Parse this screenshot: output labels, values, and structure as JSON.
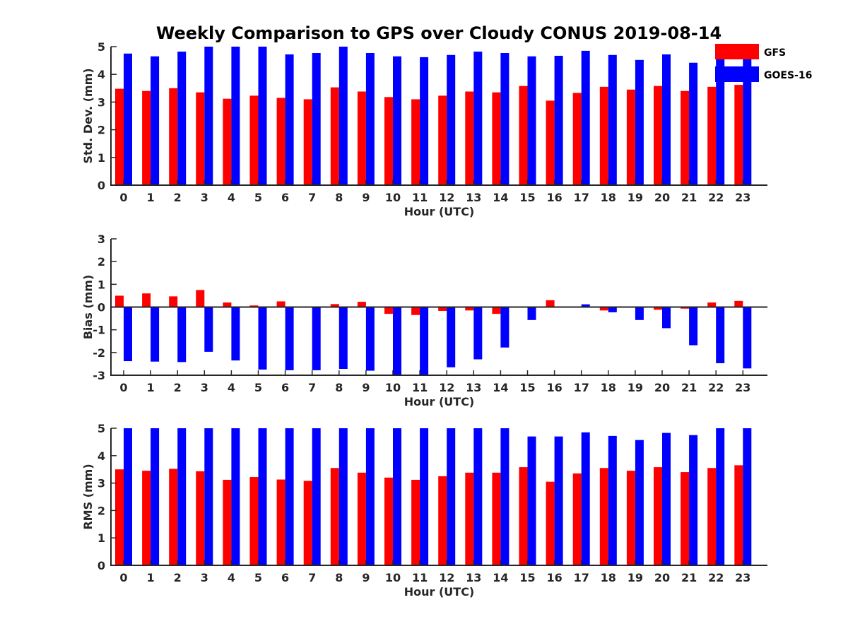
{
  "title": "Weekly Comparison to GPS over Cloudy CONUS 2019-08-14",
  "legend": {
    "items": [
      {
        "name": "GFS",
        "color": "#ff0000"
      },
      {
        "name": "GOES-16",
        "color": "#0000ff"
      }
    ]
  },
  "chart_data": [
    {
      "type": "bar",
      "xlabel": "Hour (UTC)",
      "ylabel": "Std. Dev. (mm)",
      "ylim": [
        0,
        5
      ],
      "yticks": [
        0,
        1,
        2,
        3,
        4,
        5
      ],
      "categories": [
        "0",
        "1",
        "2",
        "3",
        "4",
        "5",
        "6",
        "7",
        "8",
        "9",
        "10",
        "11",
        "12",
        "13",
        "14",
        "15",
        "16",
        "17",
        "18",
        "19",
        "20",
        "21",
        "22",
        "23"
      ],
      "series": [
        {
          "name": "GFS",
          "color": "#ff0000",
          "values": [
            3.48,
            3.4,
            3.5,
            3.35,
            3.12,
            3.23,
            3.15,
            3.1,
            3.53,
            3.38,
            3.18,
            3.1,
            3.23,
            3.38,
            3.35,
            3.58,
            3.05,
            3.33,
            3.55,
            3.45,
            3.58,
            3.4,
            3.55,
            3.62
          ]
        },
        {
          "name": "GOES-16",
          "color": "#0000ff",
          "values": [
            4.75,
            4.65,
            4.82,
            5.0,
            5.0,
            5.0,
            4.72,
            4.77,
            5.0,
            4.77,
            4.65,
            4.62,
            4.7,
            4.82,
            4.77,
            4.65,
            4.67,
            4.85,
            4.7,
            4.52,
            4.72,
            4.42,
            4.77,
            4.7
          ]
        }
      ]
    },
    {
      "type": "bar",
      "xlabel": "Hour (UTC)",
      "ylabel": "Bias (mm)",
      "ylim": [
        -3,
        3
      ],
      "yticks": [
        -3,
        -2,
        -1,
        0,
        1,
        2,
        3
      ],
      "categories": [
        "0",
        "1",
        "2",
        "3",
        "4",
        "5",
        "6",
        "7",
        "8",
        "9",
        "10",
        "11",
        "12",
        "13",
        "14",
        "15",
        "16",
        "17",
        "18",
        "19",
        "20",
        "21",
        "22",
        "23"
      ],
      "series": [
        {
          "name": "GFS",
          "color": "#ff0000",
          "values": [
            0.5,
            0.6,
            0.47,
            0.75,
            0.2,
            0.07,
            0.25,
            0.03,
            0.13,
            0.23,
            -0.3,
            -0.35,
            -0.17,
            -0.15,
            -0.3,
            0.0,
            0.3,
            0.0,
            -0.15,
            0.0,
            -0.12,
            -0.07,
            0.2,
            0.27
          ]
        },
        {
          "name": "GOES-16",
          "color": "#0000ff",
          "values": [
            -2.38,
            -2.4,
            -2.42,
            -1.97,
            -2.35,
            -2.75,
            -2.78,
            -2.78,
            -2.72,
            -2.8,
            -3.0,
            -2.98,
            -2.65,
            -2.3,
            -1.78,
            -0.57,
            0.03,
            0.12,
            -0.23,
            -0.57,
            -0.93,
            -1.68,
            -2.47,
            -2.7
          ]
        }
      ]
    },
    {
      "type": "bar",
      "xlabel": "Hour (UTC)",
      "ylabel": "RMS (mm)",
      "ylim": [
        0,
        5
      ],
      "yticks": [
        0,
        1,
        2,
        3,
        4,
        5
      ],
      "categories": [
        "0",
        "1",
        "2",
        "3",
        "4",
        "5",
        "6",
        "7",
        "8",
        "9",
        "10",
        "11",
        "12",
        "13",
        "14",
        "15",
        "16",
        "17",
        "18",
        "19",
        "20",
        "21",
        "22",
        "23"
      ],
      "series": [
        {
          "name": "GFS",
          "color": "#ff0000",
          "values": [
            3.5,
            3.45,
            3.52,
            3.43,
            3.12,
            3.22,
            3.13,
            3.08,
            3.55,
            3.38,
            3.2,
            3.12,
            3.25,
            3.38,
            3.38,
            3.58,
            3.05,
            3.35,
            3.55,
            3.45,
            3.58,
            3.4,
            3.55,
            3.65
          ]
        },
        {
          "name": "GOES-16",
          "color": "#0000ff",
          "values": [
            5.0,
            5.0,
            5.0,
            5.0,
            5.0,
            5.0,
            5.0,
            5.0,
            5.0,
            5.0,
            5.0,
            5.0,
            5.0,
            5.0,
            5.0,
            4.7,
            4.7,
            4.85,
            4.72,
            4.57,
            4.83,
            4.75,
            5.0,
            5.0
          ]
        }
      ]
    }
  ]
}
